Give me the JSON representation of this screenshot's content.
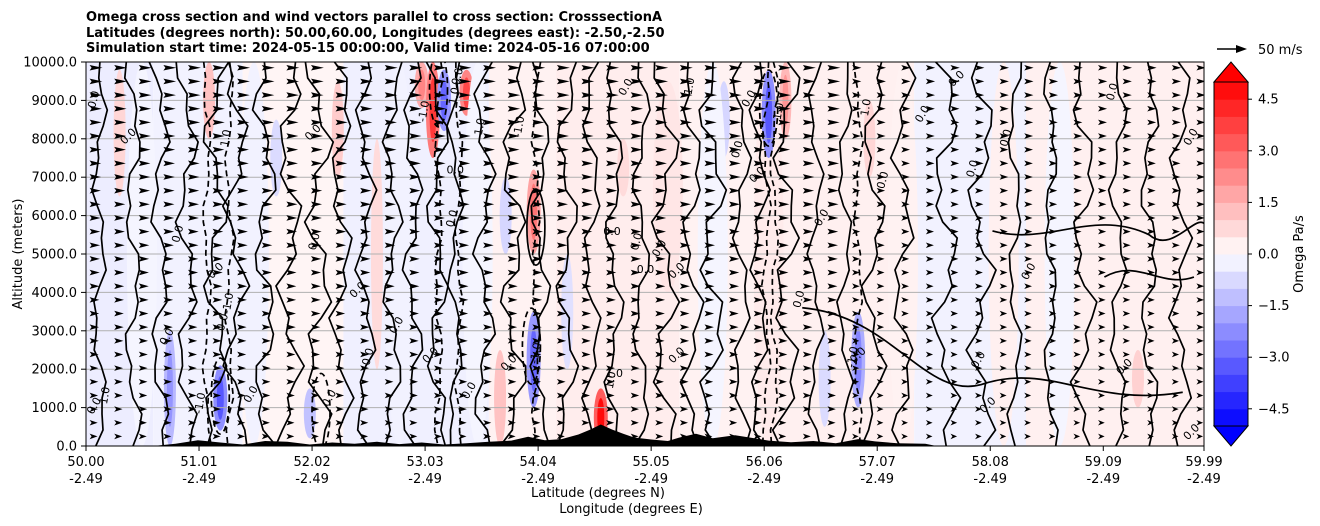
{
  "chart_data": {
    "type": "heatmap",
    "title_lines": [
      "Omega cross section and wind vectors parallel to cross section: CrosssectionA",
      "Latitudes (degrees north): 50.00,60.00, Longitudes (degrees east): -2.50,-2.50",
      "Simulation start time: 2024-05-15 00:00:00, Valid time: 2024-05-16 07:00:00"
    ],
    "ylabel": "Altitude (meters)",
    "xlabel_lines": [
      "Latitude (degrees N)",
      "Longitude (degrees E)"
    ],
    "x_range": [
      50.0,
      59.99
    ],
    "y_range": [
      0,
      10000
    ],
    "x_ticks": [
      {
        "lat": "50.00",
        "lon": "-2.49",
        "v": 50.0
      },
      {
        "lat": "51.01",
        "lon": "-2.49",
        "v": 51.01
      },
      {
        "lat": "52.02",
        "lon": "-2.49",
        "v": 52.02
      },
      {
        "lat": "53.03",
        "lon": "-2.49",
        "v": 53.03
      },
      {
        "lat": "54.04",
        "lon": "-2.49",
        "v": 54.04
      },
      {
        "lat": "55.05",
        "lon": "-2.49",
        "v": 55.05
      },
      {
        "lat": "56.06",
        "lon": "-2.49",
        "v": 56.06
      },
      {
        "lat": "57.07",
        "lon": "-2.49",
        "v": 57.07
      },
      {
        "lat": "58.08",
        "lon": "-2.49",
        "v": 58.08
      },
      {
        "lat": "59.09",
        "lon": "-2.49",
        "v": 59.09
      },
      {
        "lat": "59.99",
        "lon": "-2.49",
        "v": 59.99
      }
    ],
    "y_ticks": [
      "0.0",
      "1000.0",
      "2000.0",
      "3000.0",
      "4000.0",
      "5000.0",
      "6000.0",
      "7000.0",
      "8000.0",
      "9000.0",
      "10000.0"
    ],
    "y_tick_values": [
      0,
      1000,
      2000,
      3000,
      4000,
      5000,
      6000,
      7000,
      8000,
      9000,
      10000
    ],
    "grid": "horizontal",
    "colorbar": {
      "label": "Omega Pa/s",
      "ticks": [
        "4.5",
        "3.0",
        "1.5",
        "0.0",
        "−1.5",
        "−3.0",
        "−4.5"
      ],
      "tick_values": [
        4.5,
        3.0,
        1.5,
        0.0,
        -1.5,
        -3.0,
        -4.5
      ],
      "range": [
        -5,
        5
      ],
      "extend": "both",
      "neg_color": "#0000ff",
      "pos_color": "#ff0000"
    },
    "quiver_key": {
      "label": "50 m/s",
      "speed": 50
    },
    "contour_label": "0.0",
    "contour_labels_misc": [
      "1.0",
      "-1.0",
      "0.0"
    ],
    "omega_bands": [
      {
        "lat": 50.3,
        "h0": 6500,
        "h1": 9800,
        "v": 0.8
      },
      {
        "lat": 50.75,
        "h0": 0,
        "h1": 3000,
        "v": -1.4
      },
      {
        "lat": 51.1,
        "h0": 8000,
        "h1": 10000,
        "v": 1.2
      },
      {
        "lat": 51.2,
        "h0": 400,
        "h1": 2100,
        "v": -2.2
      },
      {
        "lat": 51.7,
        "h0": 6500,
        "h1": 8500,
        "v": -0.7
      },
      {
        "lat": 52.0,
        "h0": 200,
        "h1": 1500,
        "v": -1.2
      },
      {
        "lat": 52.25,
        "h0": 7000,
        "h1": 9500,
        "v": 1.0
      },
      {
        "lat": 52.6,
        "h0": 2000,
        "h1": 8000,
        "v": 0.7
      },
      {
        "lat": 53.0,
        "h0": 8800,
        "h1": 10000,
        "v": 1.6
      },
      {
        "lat": 53.1,
        "h0": 7500,
        "h1": 10000,
        "v": 2.6
      },
      {
        "lat": 53.2,
        "h0": 8200,
        "h1": 9800,
        "v": -2.0
      },
      {
        "lat": 53.4,
        "h0": 8600,
        "h1": 9800,
        "v": 2.4
      },
      {
        "lat": 53.7,
        "h0": 0,
        "h1": 2500,
        "v": 1.2
      },
      {
        "lat": 53.75,
        "h0": 5000,
        "h1": 7000,
        "v": -0.8
      },
      {
        "lat": 54.0,
        "h0": 5000,
        "h1": 7200,
        "v": 1.8
      },
      {
        "lat": 54.0,
        "h0": 1000,
        "h1": 3500,
        "v": -2.0
      },
      {
        "lat": 54.3,
        "h0": 2000,
        "h1": 5000,
        "v": -0.6
      },
      {
        "lat": 54.6,
        "h0": 0,
        "h1": 1500,
        "v": 3.2
      },
      {
        "lat": 54.8,
        "h0": 6500,
        "h1": 8000,
        "v": 0.7
      },
      {
        "lat": 55.2,
        "h0": 4000,
        "h1": 9500,
        "v": 0.5
      },
      {
        "lat": 55.7,
        "h0": 7500,
        "h1": 9500,
        "v": -0.8
      },
      {
        "lat": 56.1,
        "h0": 0,
        "h1": 10000,
        "v": 0.4
      },
      {
        "lat": 56.1,
        "h0": 7500,
        "h1": 9800,
        "v": -2.2
      },
      {
        "lat": 56.25,
        "h0": 8000,
        "h1": 10000,
        "v": 1.4
      },
      {
        "lat": 56.6,
        "h0": 500,
        "h1": 3000,
        "v": -0.7
      },
      {
        "lat": 56.9,
        "h0": 1000,
        "h1": 3500,
        "v": -1.6
      },
      {
        "lat": 57.0,
        "h0": 7000,
        "h1": 9000,
        "v": 0.8
      },
      {
        "lat": 57.3,
        "h0": 0,
        "h1": 10000,
        "v": 0.25
      },
      {
        "lat": 58.2,
        "h0": 0,
        "h1": 10000,
        "v": 0.3
      },
      {
        "lat": 59.0,
        "h0": 0,
        "h1": 10000,
        "v": 0.3
      },
      {
        "lat": 59.4,
        "h0": 1000,
        "h1": 2500,
        "v": 0.9
      },
      {
        "lat": 50.5,
        "h0": 0,
        "h1": 10000,
        "v": -0.2
      },
      {
        "lat": 51.5,
        "h0": 0,
        "h1": 10000,
        "v": -0.25
      },
      {
        "lat": 52.8,
        "h0": 0,
        "h1": 10000,
        "v": -0.25
      },
      {
        "lat": 53.5,
        "h0": 0,
        "h1": 10000,
        "v": -0.2
      },
      {
        "lat": 55.6,
        "h0": 0,
        "h1": 10000,
        "v": -0.2
      },
      {
        "lat": 57.7,
        "h0": 0,
        "h1": 10000,
        "v": -0.25
      },
      {
        "lat": 58.7,
        "h0": 0,
        "h1": 10000,
        "v": -0.2
      }
    ],
    "contour_solid_lats": [
      50.12,
      50.42,
      50.66,
      50.9,
      51.16,
      51.34,
      51.6,
      51.82,
      52.08,
      52.28,
      52.5,
      52.74,
      52.92,
      53.14,
      53.3,
      53.56,
      53.82,
      54.06,
      54.3,
      54.52,
      54.72,
      54.96,
      55.18,
      55.42,
      55.6,
      55.86,
      56.02,
      56.26,
      56.52,
      56.78,
      57.04,
      57.3,
      57.68,
      58.0,
      58.3,
      58.62,
      58.92,
      59.22,
      59.5,
      59.78
    ],
    "contour_dashed_lats": [
      51.08,
      51.28,
      53.15,
      53.33,
      54.02,
      56.08,
      56.15,
      56.9
    ],
    "terrain": [
      [
        50.6,
        0
      ],
      [
        50.8,
        60
      ],
      [
        51.0,
        150
      ],
      [
        51.2,
        90
      ],
      [
        51.4,
        40
      ],
      [
        51.6,
        130
      ],
      [
        51.8,
        110
      ],
      [
        52.0,
        40
      ],
      [
        52.2,
        90
      ],
      [
        52.4,
        60
      ],
      [
        52.6,
        110
      ],
      [
        52.8,
        50
      ],
      [
        53.0,
        90
      ],
      [
        53.2,
        40
      ],
      [
        53.4,
        70
      ],
      [
        53.6,
        110
      ],
      [
        53.8,
        140
      ],
      [
        53.95,
        240
      ],
      [
        54.1,
        150
      ],
      [
        54.25,
        180
      ],
      [
        54.4,
        300
      ],
      [
        54.5,
        420
      ],
      [
        54.6,
        560
      ],
      [
        54.7,
        430
      ],
      [
        54.8,
        320
      ],
      [
        54.9,
        220
      ],
      [
        55.05,
        170
      ],
      [
        55.2,
        130
      ],
      [
        55.3,
        220
      ],
      [
        55.45,
        320
      ],
      [
        55.6,
        200
      ],
      [
        55.8,
        280
      ],
      [
        55.95,
        210
      ],
      [
        56.1,
        140
      ],
      [
        56.3,
        100
      ],
      [
        56.5,
        130
      ],
      [
        56.7,
        70
      ],
      [
        56.9,
        180
      ],
      [
        57.05,
        120
      ],
      [
        57.25,
        70
      ],
      [
        57.5,
        60
      ],
      [
        57.6,
        0
      ]
    ]
  }
}
